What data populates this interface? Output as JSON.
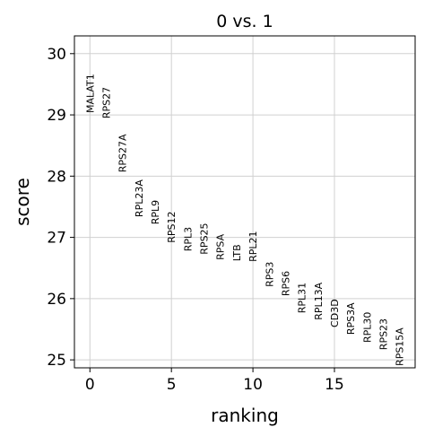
{
  "chart_data": {
    "type": "rank-text",
    "title": "0 vs. 1",
    "x_label": "ranking",
    "y_label": "score",
    "x": [
      0,
      1,
      2,
      3,
      4,
      5,
      6,
      7,
      8,
      9,
      10,
      11,
      12,
      13,
      14,
      15,
      16,
      17,
      18,
      19
    ],
    "names": [
      "MALAT1",
      "RPS27",
      "RPS27A",
      "RPL23A",
      "RPL9",
      "RPS12",
      "RPL3",
      "RPS25",
      "RPSA",
      "LTB",
      "RPL21",
      "RPS3",
      "RPS6",
      "RPL31",
      "RPL13A",
      "CD3D",
      "RPS3A",
      "RPL30",
      "RPS23",
      "RPS15A"
    ],
    "values": [
      29.03,
      28.94,
      28.06,
      27.33,
      27.21,
      26.91,
      26.77,
      26.72,
      26.63,
      26.61,
      26.6,
      26.19,
      26.04,
      25.76,
      25.65,
      25.53,
      25.41,
      25.28,
      25.16,
      24.9
    ],
    "xlim": [
      -0.95,
      19.95
    ],
    "ylim": [
      24.87,
      30.29
    ],
    "xticks": [
      0,
      5,
      10,
      15
    ],
    "yticks": [
      25,
      26,
      27,
      28,
      29,
      30
    ],
    "grid": true
  }
}
